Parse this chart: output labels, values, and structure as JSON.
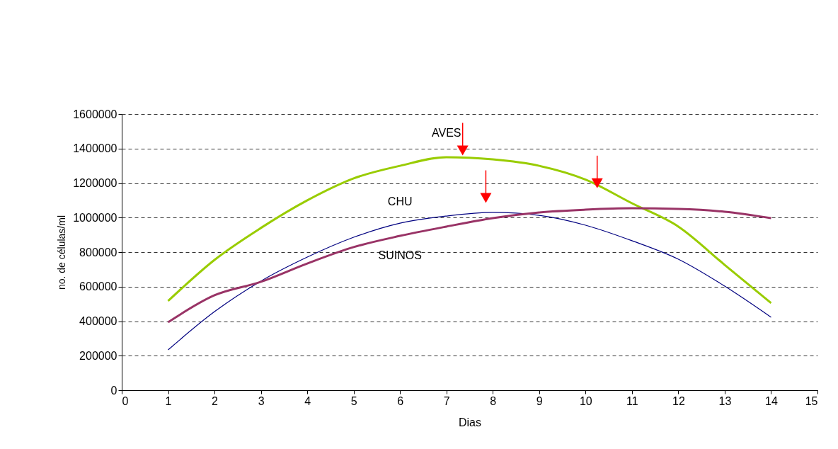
{
  "chart_data": {
    "type": "line",
    "xlabel": "Dias",
    "ylabel": "no. de células/ml",
    "x": [
      1,
      2,
      3,
      4,
      5,
      6,
      7,
      8,
      9,
      10,
      11,
      12,
      13,
      14
    ],
    "series": [
      {
        "name": "AVES",
        "color": "#99cc00",
        "values": [
          517000,
          755000,
          940000,
          1100000,
          1227000,
          1300000,
          1350000,
          1337000,
          1300000,
          1220000,
          1083000,
          948000,
          726000,
          505000
        ]
      },
      {
        "name": "CHU",
        "color": "#000080",
        "values": [
          234000,
          455000,
          632000,
          771000,
          886000,
          968000,
          1009000,
          1030000,
          1013000,
          956000,
          866000,
          759000,
          603000,
          423000
        ]
      },
      {
        "name": "SUINOS",
        "color": "#993366",
        "values": [
          394000,
          550000,
          628000,
          734000,
          829000,
          894000,
          948000,
          997000,
          1030000,
          1046000,
          1054000,
          1050000,
          1034000,
          997000
        ]
      }
    ],
    "xlim": [
      0,
      15
    ],
    "xticks": [
      0,
      1,
      2,
      3,
      4,
      5,
      6,
      7,
      8,
      9,
      10,
      11,
      12,
      13,
      14,
      15
    ],
    "ylim": [
      0,
      1600000
    ],
    "yticks": [
      0,
      200000,
      400000,
      600000,
      800000,
      1000000,
      1200000,
      1400000,
      1600000
    ],
    "grid": "y",
    "marker": "none",
    "line_style": "solid"
  }
}
